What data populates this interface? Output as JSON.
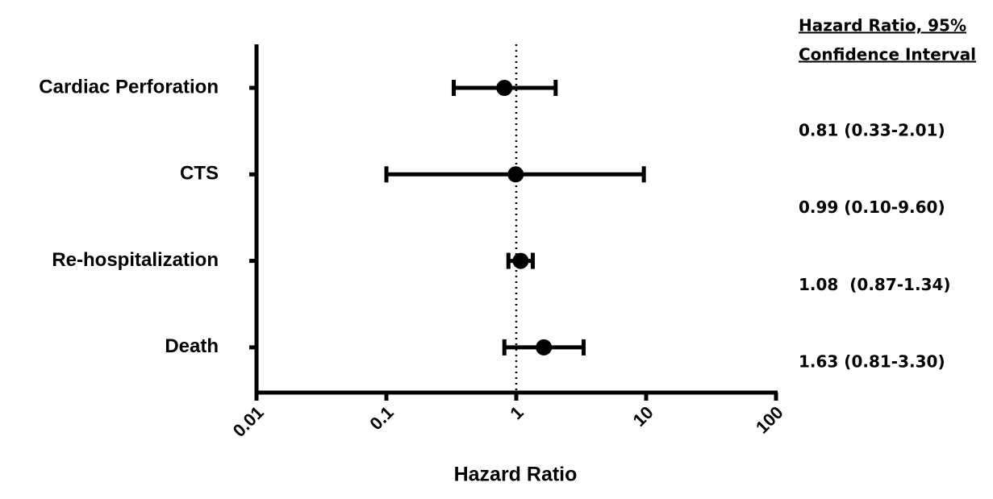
{
  "chart_data": {
    "type": "forest",
    "categories": [
      "Cardiac Perforation",
      "CTS",
      "Re-hospitalization",
      "Death"
    ],
    "values": [
      0.81,
      0.99,
      1.08,
      1.63
    ],
    "ci_lower": [
      0.33,
      0.1,
      0.87,
      0.81
    ],
    "ci_upper": [
      2.01,
      9.6,
      1.34,
      3.3
    ],
    "value_labels": [
      "0.81 (0.33-2.01)",
      "0.99 (0.10-9.60)",
      "1.08  (0.87-1.34)",
      "1.63 (0.81-3.30)"
    ],
    "column_header": [
      "Hazard Ratio, 95%",
      "Confidence Interval"
    ],
    "xlabel": "Hazard Ratio",
    "xscale": "log",
    "xlim": [
      0.01,
      100
    ],
    "xticks": [
      0.01,
      0.1,
      1,
      10,
      100
    ],
    "reference_line": 1,
    "color": "#000000"
  }
}
